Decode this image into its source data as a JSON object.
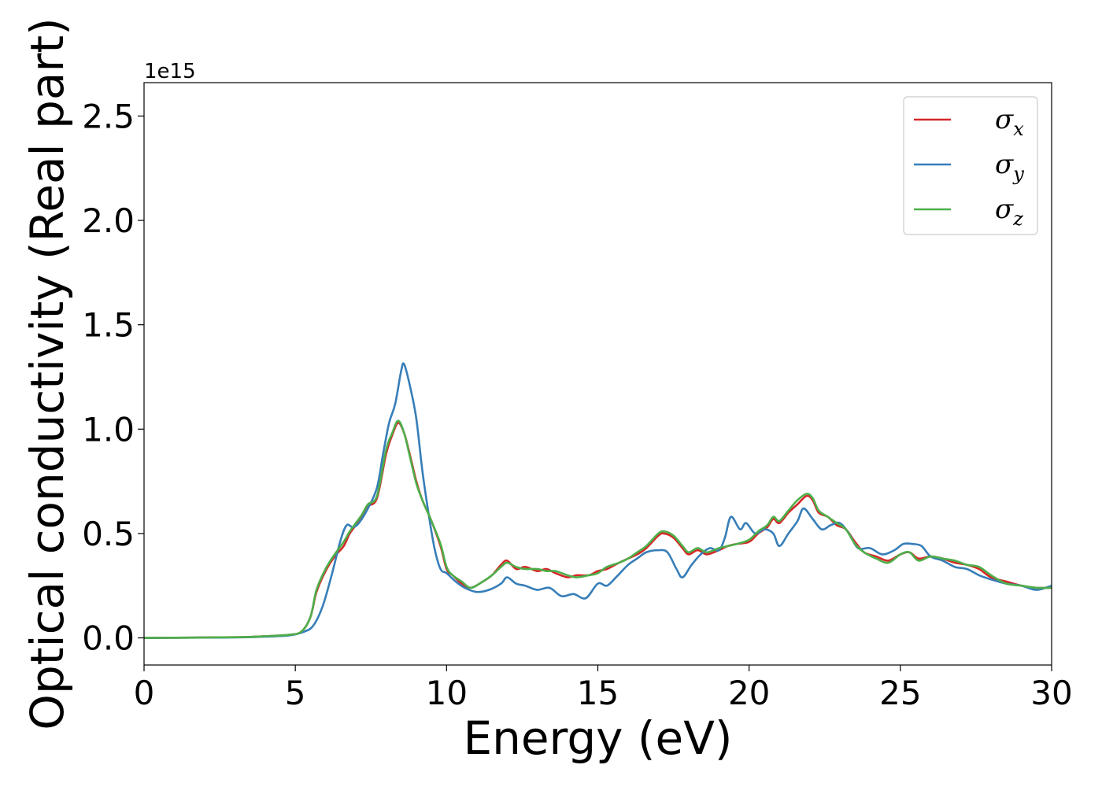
{
  "chart_data": {
    "type": "line",
    "title": "",
    "xlabel": "Energy (eV)",
    "ylabel": "Optical conductivity (Real part)",
    "y_offset_label": "1e15",
    "xlim": [
      0,
      30
    ],
    "ylim": [
      -0.13,
      2.66
    ],
    "x_ticks": [
      0,
      5,
      10,
      15,
      20,
      25,
      30
    ],
    "y_ticks": [
      0.0,
      0.5,
      1.0,
      1.5,
      2.0,
      2.5
    ],
    "x_tick_labels": [
      "0",
      "5",
      "10",
      "15",
      "20",
      "25",
      "30"
    ],
    "y_tick_labels": [
      "0.0",
      "0.5",
      "1.0",
      "1.5",
      "2.0",
      "2.5"
    ],
    "grid": false,
    "legend_position": "top-right",
    "series": [
      {
        "name": "σx",
        "symbol": "σ",
        "subscript": "x",
        "color": "#d62728",
        "points": [
          [
            0,
            0
          ],
          [
            3,
            0.003
          ],
          [
            4,
            0.008
          ],
          [
            4.8,
            0.015
          ],
          [
            5.2,
            0.03
          ],
          [
            5.5,
            0.1
          ],
          [
            5.7,
            0.22
          ],
          [
            6.0,
            0.32
          ],
          [
            6.3,
            0.39
          ],
          [
            6.6,
            0.44
          ],
          [
            6.8,
            0.5
          ],
          [
            7.0,
            0.54
          ],
          [
            7.2,
            0.58
          ],
          [
            7.4,
            0.63
          ],
          [
            7.7,
            0.67
          ],
          [
            8.0,
            0.88
          ],
          [
            8.2,
            0.97
          ],
          [
            8.4,
            1.03
          ],
          [
            8.6,
            0.98
          ],
          [
            8.8,
            0.87
          ],
          [
            9.0,
            0.75
          ],
          [
            9.2,
            0.66
          ],
          [
            9.5,
            0.56
          ],
          [
            9.8,
            0.44
          ],
          [
            10.0,
            0.33
          ],
          [
            10.2,
            0.3
          ],
          [
            10.5,
            0.26
          ],
          [
            10.8,
            0.24
          ],
          [
            11.2,
            0.27
          ],
          [
            11.5,
            0.3
          ],
          [
            11.8,
            0.35
          ],
          [
            12.0,
            0.37
          ],
          [
            12.3,
            0.33
          ],
          [
            12.6,
            0.34
          ],
          [
            13.0,
            0.32
          ],
          [
            13.3,
            0.33
          ],
          [
            13.6,
            0.31
          ],
          [
            14.0,
            0.29
          ],
          [
            14.3,
            0.3
          ],
          [
            14.7,
            0.3
          ],
          [
            15.0,
            0.32
          ],
          [
            15.3,
            0.33
          ],
          [
            15.7,
            0.36
          ],
          [
            16.0,
            0.38
          ],
          [
            16.3,
            0.4
          ],
          [
            16.6,
            0.43
          ],
          [
            17.0,
            0.49
          ],
          [
            17.2,
            0.5
          ],
          [
            17.5,
            0.48
          ],
          [
            17.8,
            0.43
          ],
          [
            18.0,
            0.4
          ],
          [
            18.3,
            0.42
          ],
          [
            18.6,
            0.4
          ],
          [
            19.0,
            0.42
          ],
          [
            19.3,
            0.44
          ],
          [
            19.6,
            0.45
          ],
          [
            20.0,
            0.46
          ],
          [
            20.3,
            0.5
          ],
          [
            20.6,
            0.53
          ],
          [
            20.8,
            0.57
          ],
          [
            21.0,
            0.55
          ],
          [
            21.3,
            0.6
          ],
          [
            21.6,
            0.64
          ],
          [
            21.9,
            0.68
          ],
          [
            22.1,
            0.66
          ],
          [
            22.3,
            0.6
          ],
          [
            22.6,
            0.58
          ],
          [
            22.9,
            0.54
          ],
          [
            23.2,
            0.52
          ],
          [
            23.5,
            0.46
          ],
          [
            23.8,
            0.41
          ],
          [
            24.2,
            0.39
          ],
          [
            24.6,
            0.37
          ],
          [
            25.0,
            0.4
          ],
          [
            25.3,
            0.41
          ],
          [
            25.6,
            0.38
          ],
          [
            26.0,
            0.39
          ],
          [
            26.4,
            0.38
          ],
          [
            26.8,
            0.36
          ],
          [
            27.2,
            0.35
          ],
          [
            27.6,
            0.33
          ],
          [
            28.0,
            0.29
          ],
          [
            28.5,
            0.27
          ],
          [
            29.0,
            0.25
          ],
          [
            29.5,
            0.24
          ],
          [
            30.0,
            0.24
          ]
        ]
      },
      {
        "name": "σy",
        "symbol": "σ",
        "subscript": "y",
        "color": "#377eb8",
        "points": [
          [
            0,
            0
          ],
          [
            3,
            0.002
          ],
          [
            4,
            0.006
          ],
          [
            4.8,
            0.012
          ],
          [
            5.3,
            0.03
          ],
          [
            5.6,
            0.06
          ],
          [
            5.9,
            0.15
          ],
          [
            6.2,
            0.3
          ],
          [
            6.5,
            0.47
          ],
          [
            6.7,
            0.54
          ],
          [
            6.9,
            0.53
          ],
          [
            7.1,
            0.55
          ],
          [
            7.4,
            0.62
          ],
          [
            7.7,
            0.72
          ],
          [
            7.9,
            0.88
          ],
          [
            8.1,
            1.03
          ],
          [
            8.3,
            1.12
          ],
          [
            8.5,
            1.28
          ],
          [
            8.6,
            1.31
          ],
          [
            8.8,
            1.2
          ],
          [
            9.0,
            1.05
          ],
          [
            9.2,
            0.8
          ],
          [
            9.4,
            0.6
          ],
          [
            9.6,
            0.43
          ],
          [
            9.8,
            0.33
          ],
          [
            10.0,
            0.31
          ],
          [
            10.3,
            0.27
          ],
          [
            10.6,
            0.24
          ],
          [
            11.0,
            0.22
          ],
          [
            11.4,
            0.23
          ],
          [
            11.8,
            0.26
          ],
          [
            12.0,
            0.29
          ],
          [
            12.3,
            0.26
          ],
          [
            12.6,
            0.25
          ],
          [
            13.0,
            0.23
          ],
          [
            13.4,
            0.24
          ],
          [
            13.8,
            0.2
          ],
          [
            14.2,
            0.21
          ],
          [
            14.6,
            0.19
          ],
          [
            15.0,
            0.26
          ],
          [
            15.3,
            0.25
          ],
          [
            15.6,
            0.29
          ],
          [
            16.0,
            0.35
          ],
          [
            16.3,
            0.38
          ],
          [
            16.6,
            0.41
          ],
          [
            17.0,
            0.42
          ],
          [
            17.3,
            0.41
          ],
          [
            17.6,
            0.33
          ],
          [
            17.8,
            0.29
          ],
          [
            18.1,
            0.35
          ],
          [
            18.4,
            0.4
          ],
          [
            18.7,
            0.43
          ],
          [
            19.0,
            0.42
          ],
          [
            19.2,
            0.48
          ],
          [
            19.4,
            0.58
          ],
          [
            19.7,
            0.52
          ],
          [
            19.9,
            0.55
          ],
          [
            20.2,
            0.5
          ],
          [
            20.5,
            0.52
          ],
          [
            20.8,
            0.5
          ],
          [
            21.0,
            0.44
          ],
          [
            21.3,
            0.5
          ],
          [
            21.6,
            0.56
          ],
          [
            21.8,
            0.62
          ],
          [
            22.1,
            0.57
          ],
          [
            22.4,
            0.52
          ],
          [
            22.7,
            0.54
          ],
          [
            23.0,
            0.55
          ],
          [
            23.3,
            0.5
          ],
          [
            23.6,
            0.43
          ],
          [
            24.0,
            0.43
          ],
          [
            24.4,
            0.4
          ],
          [
            24.8,
            0.42
          ],
          [
            25.1,
            0.45
          ],
          [
            25.4,
            0.45
          ],
          [
            25.7,
            0.44
          ],
          [
            26.0,
            0.39
          ],
          [
            26.4,
            0.37
          ],
          [
            26.8,
            0.34
          ],
          [
            27.2,
            0.33
          ],
          [
            27.6,
            0.3
          ],
          [
            28.0,
            0.28
          ],
          [
            28.5,
            0.26
          ],
          [
            29.0,
            0.25
          ],
          [
            29.5,
            0.23
          ],
          [
            30.0,
            0.25
          ]
        ]
      },
      {
        "name": "σz",
        "symbol": "σ",
        "subscript": "z",
        "color": "#4daf4a",
        "points": [
          [
            0,
            0
          ],
          [
            3,
            0.003
          ],
          [
            4,
            0.008
          ],
          [
            4.8,
            0.015
          ],
          [
            5.2,
            0.03
          ],
          [
            5.5,
            0.1
          ],
          [
            5.7,
            0.23
          ],
          [
            6.0,
            0.33
          ],
          [
            6.3,
            0.4
          ],
          [
            6.6,
            0.46
          ],
          [
            6.8,
            0.51
          ],
          [
            7.0,
            0.55
          ],
          [
            7.2,
            0.59
          ],
          [
            7.4,
            0.64
          ],
          [
            7.7,
            0.68
          ],
          [
            8.0,
            0.9
          ],
          [
            8.2,
            0.98
          ],
          [
            8.4,
            1.04
          ],
          [
            8.6,
            0.98
          ],
          [
            8.8,
            0.86
          ],
          [
            9.0,
            0.74
          ],
          [
            9.2,
            0.66
          ],
          [
            9.5,
            0.56
          ],
          [
            9.8,
            0.45
          ],
          [
            10.0,
            0.34
          ],
          [
            10.2,
            0.3
          ],
          [
            10.5,
            0.27
          ],
          [
            10.8,
            0.24
          ],
          [
            11.2,
            0.27
          ],
          [
            11.5,
            0.3
          ],
          [
            11.8,
            0.34
          ],
          [
            12.0,
            0.36
          ],
          [
            12.3,
            0.34
          ],
          [
            12.6,
            0.33
          ],
          [
            13.0,
            0.33
          ],
          [
            13.3,
            0.32
          ],
          [
            13.6,
            0.32
          ],
          [
            14.0,
            0.3
          ],
          [
            14.3,
            0.29
          ],
          [
            14.7,
            0.3
          ],
          [
            15.0,
            0.31
          ],
          [
            15.3,
            0.34
          ],
          [
            15.7,
            0.36
          ],
          [
            16.0,
            0.38
          ],
          [
            16.3,
            0.41
          ],
          [
            16.6,
            0.44
          ],
          [
            17.0,
            0.5
          ],
          [
            17.2,
            0.51
          ],
          [
            17.5,
            0.49
          ],
          [
            17.8,
            0.44
          ],
          [
            18.0,
            0.41
          ],
          [
            18.3,
            0.43
          ],
          [
            18.6,
            0.41
          ],
          [
            19.0,
            0.43
          ],
          [
            19.3,
            0.44
          ],
          [
            19.6,
            0.45
          ],
          [
            20.0,
            0.47
          ],
          [
            20.3,
            0.51
          ],
          [
            20.6,
            0.54
          ],
          [
            20.8,
            0.58
          ],
          [
            21.0,
            0.56
          ],
          [
            21.3,
            0.61
          ],
          [
            21.6,
            0.66
          ],
          [
            21.9,
            0.69
          ],
          [
            22.1,
            0.67
          ],
          [
            22.3,
            0.61
          ],
          [
            22.6,
            0.58
          ],
          [
            22.9,
            0.55
          ],
          [
            23.2,
            0.52
          ],
          [
            23.5,
            0.45
          ],
          [
            23.8,
            0.41
          ],
          [
            24.2,
            0.38
          ],
          [
            24.6,
            0.36
          ],
          [
            25.0,
            0.4
          ],
          [
            25.3,
            0.41
          ],
          [
            25.6,
            0.37
          ],
          [
            26.0,
            0.39
          ],
          [
            26.4,
            0.38
          ],
          [
            26.8,
            0.37
          ],
          [
            27.2,
            0.35
          ],
          [
            27.6,
            0.34
          ],
          [
            28.0,
            0.3
          ],
          [
            28.5,
            0.26
          ],
          [
            29.0,
            0.25
          ],
          [
            29.5,
            0.24
          ],
          [
            30.0,
            0.24
          ]
        ]
      }
    ]
  }
}
